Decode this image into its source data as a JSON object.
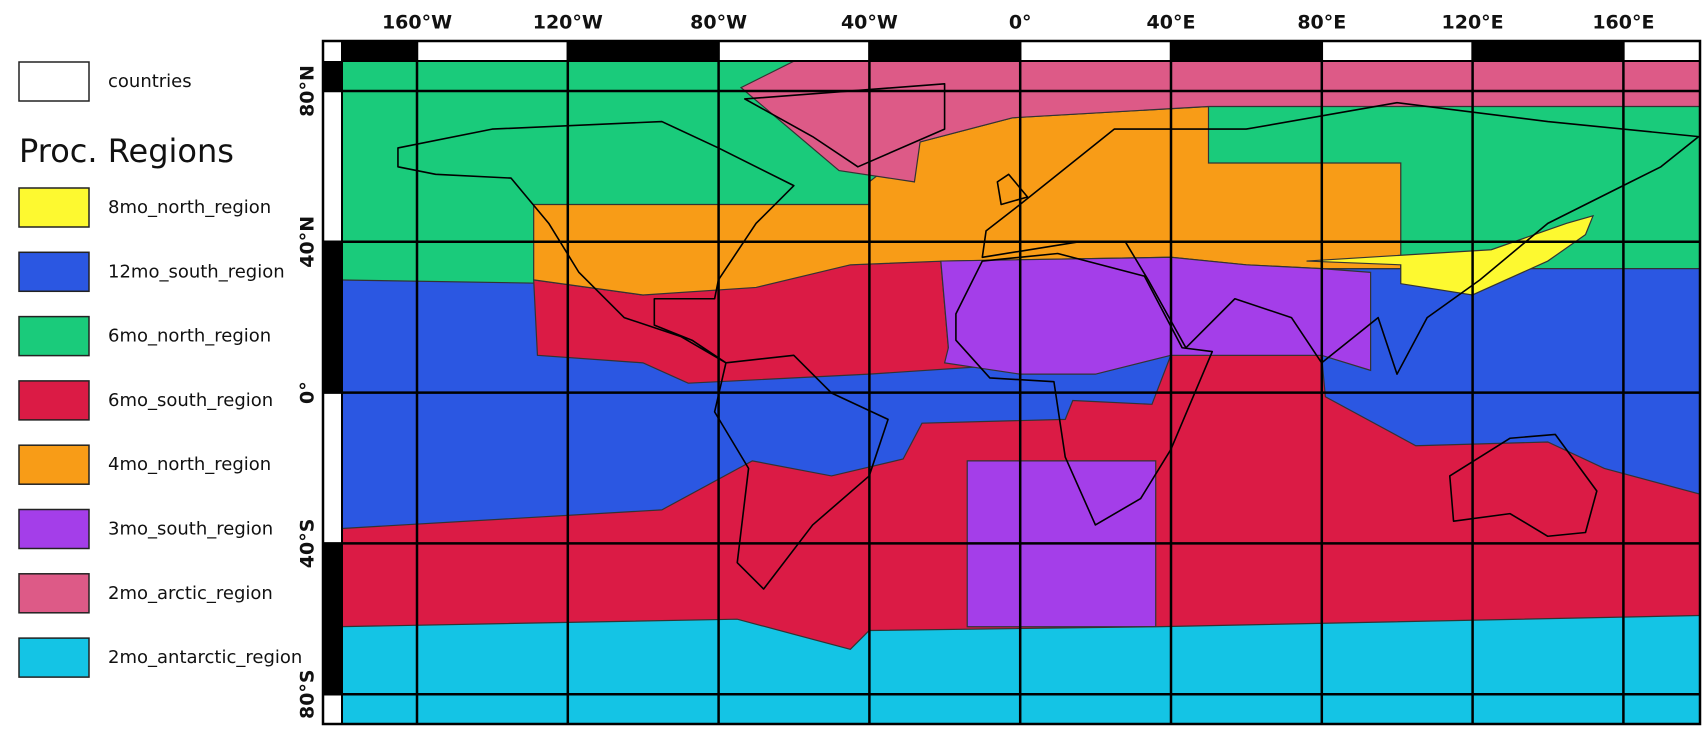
{
  "legend": {
    "countries_label": "countries",
    "title": "Proc. Regions",
    "items": [
      {
        "label": "8mo_north_region",
        "color": "#fdf930"
      },
      {
        "label": "12mo_south_region",
        "color": "#2b57e2"
      },
      {
        "label": "6mo_north_region",
        "color": "#1acb7b"
      },
      {
        "label": "6mo_south_region",
        "color": "#db1b45"
      },
      {
        "label": "4mo_north_region",
        "color": "#f89c17"
      },
      {
        "label": "3mo_south_region",
        "color": "#a43ee9"
      },
      {
        "label": "2mo_arctic_region",
        "color": "#dd5a87"
      },
      {
        "label": "2mo_antarctic_region",
        "color": "#14c4e5"
      }
    ]
  },
  "map": {
    "longitude_labels": [
      "160°W",
      "120°W",
      "80°W",
      "40°W",
      "0°",
      "40°E",
      "80°E",
      "120°E",
      "160°E"
    ],
    "latitude_labels": [
      "80°N",
      "40°N",
      "0°",
      "40°S",
      "80°S"
    ]
  }
}
